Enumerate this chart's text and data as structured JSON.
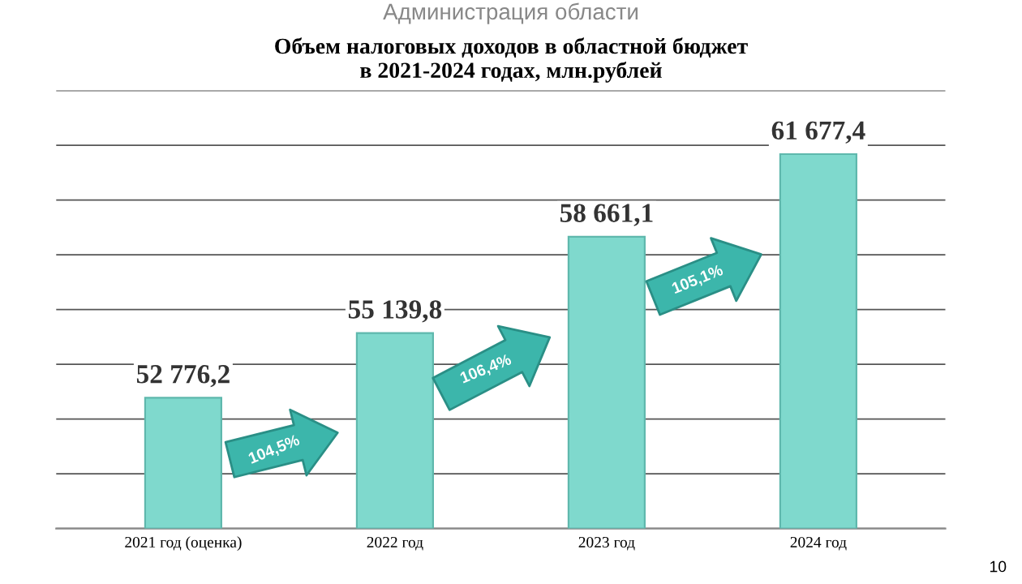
{
  "chart_data": {
    "type": "bar",
    "title": "Объем налоговых доходов в областной бюджет\nв 2021-2024 годах, млн.рублей",
    "categories": [
      "2021 год (оценка)",
      "2022 год",
      "2023 год",
      "2024 год"
    ],
    "values": [
      52776.2,
      55139.8,
      58661.1,
      61677.4
    ],
    "value_labels": [
      "52 776,2",
      "55 139,8",
      "58 661,1",
      "61 677,4"
    ],
    "color": "#7fd9cd",
    "ylim": [
      48000,
      64000
    ],
    "yticks": [
      {
        "value": 48000,
        "label": null
      },
      {
        "value": 50000,
        "label": null
      },
      {
        "value": 52000,
        "label": null
      },
      {
        "value": 54000,
        "label": null
      },
      {
        "value": 56000,
        "label": null
      },
      {
        "value": 58000,
        "label": null
      },
      {
        "value": 60000,
        "label": null
      },
      {
        "value": 62000,
        "label": null
      },
      {
        "value": 64000,
        "label": null
      }
    ],
    "tick_labels": "x",
    "grid": "y",
    "annotations": [
      "104,5%",
      "106,4%",
      "105,1%",
      "Администрация области",
      "10"
    ]
  }
}
